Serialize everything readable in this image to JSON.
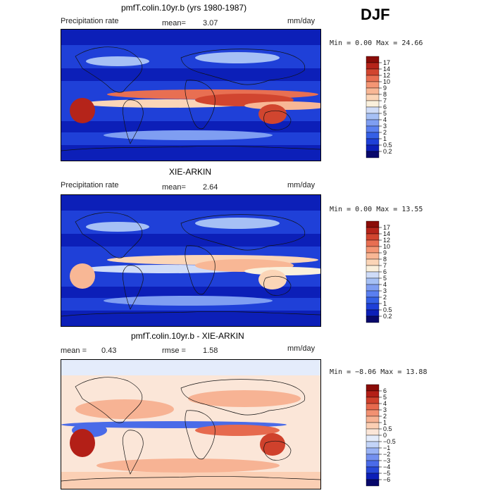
{
  "season": "DJF",
  "colors": {
    "precip_scale": [
      "#08086b",
      "#0c1fb8",
      "#1f40d8",
      "#3560e6",
      "#5a7ff0",
      "#7f9ef2",
      "#a6c0f5",
      "#cfdcf8",
      "#faf0dc",
      "#fbd5b7",
      "#f8b795",
      "#f49674",
      "#e86f52",
      "#d1452f",
      "#b5241a",
      "#8a0c08"
    ],
    "diff_scale": [
      "#08086b",
      "#0c1fb8",
      "#2748d8",
      "#4a6be8",
      "#7390f0",
      "#9ab3f5",
      "#c3d4f8",
      "#e4ecfb",
      "#fbe6d8",
      "#fbcfb4",
      "#f7b394",
      "#f29172",
      "#e66a4e",
      "#cf412c",
      "#b31f17",
      "#8a0c08"
    ]
  },
  "panels": [
    {
      "title": "pmfT.colin.10yr.b (yrs 1980-1987)",
      "left_label": "Precipitation rate",
      "stat1_label": "mean=",
      "stat1_value": "3.07",
      "stat2_label": "",
      "stat2_value": "",
      "units": "mm/day",
      "minmax": "Min =    0.00 Max =  24.66"
    },
    {
      "title": "XIE-ARKIN",
      "left_label": "Precipitation rate",
      "stat1_label": "mean=",
      "stat1_value": "2.64",
      "stat2_label": "",
      "stat2_value": "",
      "units": "mm/day",
      "minmax": "Min =    0.00 Max =  13.55"
    },
    {
      "title": "pmfT.colin.10yr.b - XIE-ARKIN",
      "left_label": "",
      "stat1_label": "mean =",
      "stat1_value": "0.43",
      "stat2_label": "rmse =",
      "stat2_value": "1.58",
      "units": "mm/day",
      "minmax": "Min =  −8.06 Max =  13.88"
    }
  ],
  "chart_data": [
    {
      "type": "heatmap",
      "title": "pmfT.colin.10yr.b (yrs 1980-1987)",
      "variable": "Precipitation rate",
      "units": "mm/day",
      "mean": 3.07,
      "min": 0.0,
      "max": 24.66,
      "colorbar_levels": [
        "17",
        "14",
        "12",
        "10",
        "9",
        "8",
        "7",
        "6",
        "5",
        "4",
        "3",
        "2",
        "1",
        "0.5",
        "0.2"
      ]
    },
    {
      "type": "heatmap",
      "title": "XIE-ARKIN",
      "variable": "Precipitation rate",
      "units": "mm/day",
      "mean": 2.64,
      "min": 0.0,
      "max": 13.55,
      "colorbar_levels": [
        "17",
        "14",
        "12",
        "10",
        "9",
        "8",
        "7",
        "6",
        "5",
        "4",
        "3",
        "2",
        "1",
        "0.5",
        "0.2"
      ]
    },
    {
      "type": "heatmap",
      "title": "pmfT.colin.10yr.b - XIE-ARKIN",
      "units": "mm/day",
      "mean": 0.43,
      "rmse": 1.58,
      "min": -8.06,
      "max": 13.88,
      "colorbar_levels": [
        "6",
        "5",
        "4",
        "3",
        "2",
        "1",
        "0.5",
        "0",
        "−0.5",
        "−1",
        "−2",
        "−3",
        "−4",
        "−5",
        "−6"
      ]
    }
  ]
}
